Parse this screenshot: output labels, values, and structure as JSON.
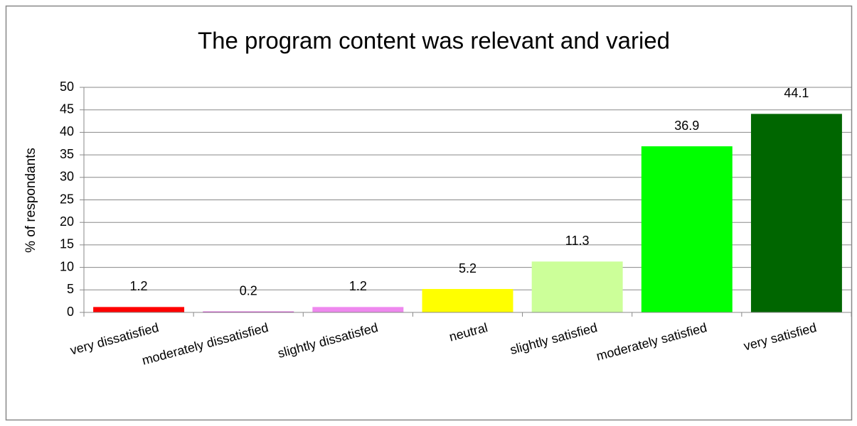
{
  "chart_data": {
    "type": "bar",
    "title": "The program content was relevant and varied",
    "ylabel": "% of respondants",
    "categories": [
      "very dissatisfied",
      "moderately dissatisfied",
      "slightly dissatisfed",
      "neutral",
      "slightly satisfied",
      "moderately satisfied",
      "very satisfied"
    ],
    "values": [
      1.2,
      0.2,
      1.2,
      5.2,
      11.3,
      36.9,
      44.1
    ],
    "colors": [
      "#ff0000",
      "#cc33cc",
      "#ee88ee",
      "#ffff00",
      "#ccff99",
      "#00ff00",
      "#006600"
    ],
    "ylim": [
      0,
      50
    ],
    "yticks": [
      0,
      5,
      10,
      15,
      20,
      25,
      30,
      35,
      40,
      45,
      50
    ],
    "grid": true
  }
}
